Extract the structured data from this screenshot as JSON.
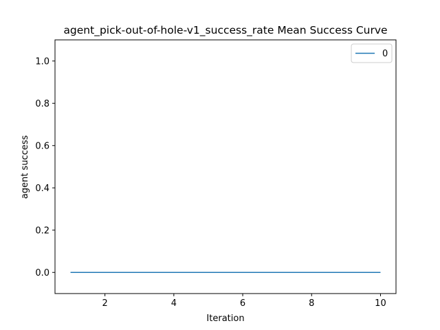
{
  "chart_data": {
    "type": "line",
    "title": "agent_pick-out-of-hole-v1_success_rate Mean Success Curve",
    "xlabel": "Iteration",
    "ylabel": "agent success",
    "xlim": [
      0.55,
      10.45
    ],
    "ylim": [
      -0.1,
      1.1
    ],
    "x_ticks": [
      2,
      4,
      6,
      8,
      10
    ],
    "y_ticks": [
      0.0,
      0.2,
      0.4,
      0.6,
      0.8,
      1.0
    ],
    "x_tick_labels": [
      "2",
      "4",
      "6",
      "8",
      "10"
    ],
    "y_tick_labels": [
      "0.0",
      "0.2",
      "0.4",
      "0.6",
      "0.8",
      "1.0"
    ],
    "grid": false,
    "legend_position": "top-right",
    "series": [
      {
        "name": "0",
        "color": "#1f77b4",
        "x": [
          1,
          2,
          3,
          4,
          5,
          6,
          7,
          8,
          9,
          10
        ],
        "values": [
          0,
          0,
          0,
          0,
          0,
          0,
          0,
          0,
          0,
          0
        ]
      }
    ]
  }
}
